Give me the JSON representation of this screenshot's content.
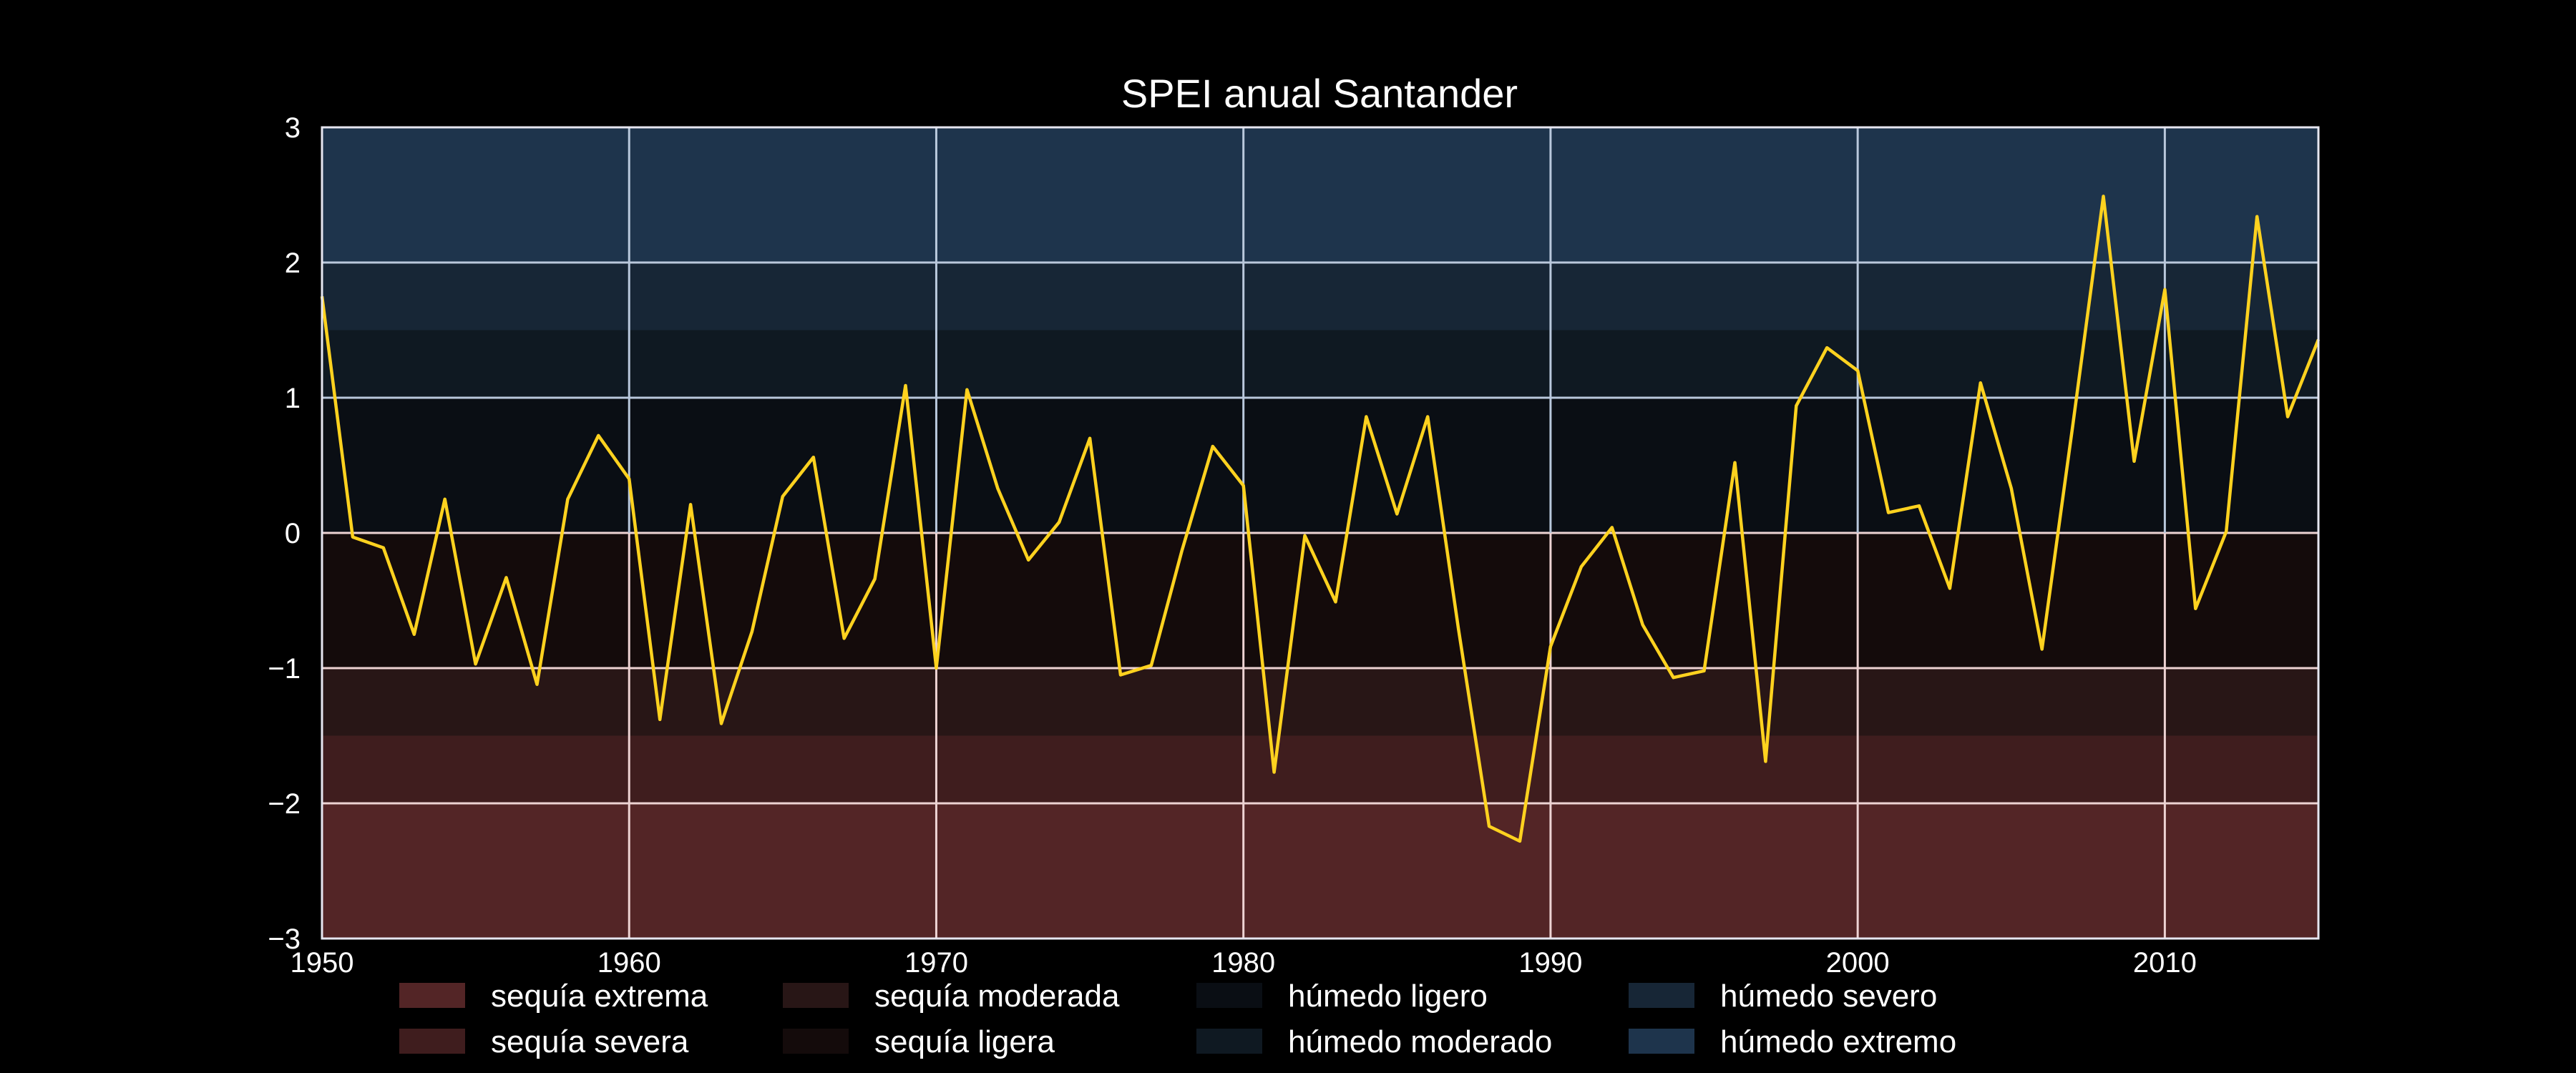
{
  "chart_data": {
    "type": "line",
    "title": "SPEI anual Santander",
    "xlabel": "",
    "ylabel": "",
    "xlim": [
      1950,
      2015
    ],
    "ylim": [
      -3,
      3
    ],
    "xticks": [
      1950,
      1960,
      1970,
      1980,
      1990,
      2000,
      2010
    ],
    "yticks": [
      -3,
      -2,
      -1,
      0,
      1,
      2,
      3
    ],
    "ytick_labels": [
      "−3",
      "−2",
      "−1",
      "0",
      "1",
      "2",
      "3"
    ],
    "grid": true,
    "legend_position": "bottom",
    "colors": {
      "background": "#000000",
      "line": "#FFD21F",
      "grid_wet": "#B9C8DC",
      "grid_dry": "#EDD3D3"
    },
    "bands": [
      {
        "label": "sequía extrema",
        "from": -3,
        "to": -2,
        "color": "#532526"
      },
      {
        "label": "sequía severa",
        "from": -2,
        "to": -1.5,
        "color": "#3F1D1E"
      },
      {
        "label": "sequía moderada",
        "from": -1.5,
        "to": -1,
        "color": "#281616"
      },
      {
        "label": "sequía ligera",
        "from": -1,
        "to": 0,
        "color": "#140B0B"
      },
      {
        "label": "húmedo ligero",
        "from": 0,
        "to": 1,
        "color": "#0A0E14"
      },
      {
        "label": "húmedo moderado",
        "from": 1,
        "to": 1.5,
        "color": "#0F1922"
      },
      {
        "label": "húmedo severo",
        "from": 1.5,
        "to": 2,
        "color": "#172636"
      },
      {
        "label": "húmedo extremo",
        "from": 2,
        "to": 3,
        "color": "#1E344C"
      }
    ],
    "series": [
      {
        "x": [
          1950,
          1951,
          1952,
          1953,
          1954,
          1955,
          1956,
          1957,
          1958,
          1959,
          1960,
          1961,
          1962,
          1963,
          1964,
          1965,
          1966,
          1967,
          1968,
          1969,
          1970,
          1971,
          1972,
          1973,
          1974,
          1975,
          1976,
          1977,
          1978,
          1979,
          1980,
          1981,
          1982,
          1983,
          1984,
          1985,
          1986,
          1987,
          1988,
          1989,
          1990,
          1991,
          1992,
          1993,
          1994,
          1995,
          1996,
          1997,
          1998,
          1999,
          2000,
          2001,
          2002,
          2003,
          2004,
          2005,
          2006,
          2007,
          2008,
          2009,
          2010,
          2011,
          2012,
          2013,
          2014,
          2015
        ],
        "values": [
          1.75,
          -0.03,
          -0.11,
          -0.75,
          0.25,
          -0.97,
          -0.33,
          -1.12,
          0.25,
          0.72,
          0.4,
          -1.38,
          0.21,
          -1.41,
          -0.73,
          0.27,
          0.56,
          -0.78,
          -0.34,
          1.09,
          -1.0,
          1.06,
          0.33,
          -0.2,
          0.08,
          0.7,
          -1.05,
          -0.98,
          -0.13,
          0.64,
          0.35,
          -1.77,
          -0.02,
          -0.51,
          0.86,
          0.14,
          0.86,
          -0.71,
          -2.17,
          -2.28,
          -0.84,
          -0.25,
          0.04,
          -0.68,
          -1.07,
          -1.02,
          0.52,
          -1.69,
          0.94,
          1.37,
          1.2,
          0.15,
          0.2,
          -0.41,
          1.11,
          0.33,
          -0.86,
          0.79,
          2.49,
          0.53,
          1.8,
          -0.56,
          0.01,
          2.34,
          0.86,
          1.43
        ]
      }
    ]
  }
}
